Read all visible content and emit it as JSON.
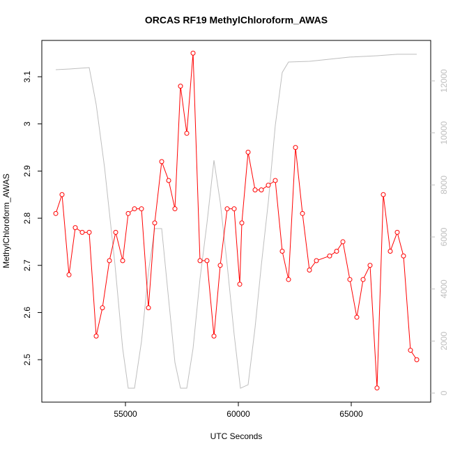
{
  "chart_data": {
    "type": "line",
    "title": "ORCAS RF19 MethylChloroform_AWAS",
    "xlabel": "UTC Seconds",
    "ylabel": "MethylChloroform_AWAS",
    "xlim": [
      51296,
      68519
    ],
    "xticks": [
      55000,
      60000,
      65000
    ],
    "ylim": [
      2.41,
      3.177
    ],
    "yticks": [
      2.5,
      2.6,
      2.7,
      2.8,
      2.9,
      3.0,
      3.1
    ],
    "y2lim": [
      -348,
      13554
    ],
    "y2ticks": [
      0,
      2000,
      4000,
      6000,
      8000,
      10000,
      12000
    ],
    "series": [
      {
        "color": "#ff0000",
        "markers": true,
        "x": [
          51914,
          52191,
          52500,
          52778,
          53086,
          53395,
          53704,
          53981,
          54290,
          54568,
          54877,
          55123,
          55401,
          55710,
          56019,
          56296,
          56605,
          56914,
          57191,
          57438,
          57716,
          57994,
          58302,
          58611,
          58920,
          59198,
          59506,
          59815,
          60062,
          60154,
          60432,
          60741,
          61019,
          61327,
          61636,
          61944,
          62222,
          62531,
          62840,
          63148,
          63457,
          64043,
          64352,
          64630,
          64938,
          65247,
          65525,
          65833,
          66142,
          66420,
          66728,
          67037,
          67315,
          67623,
          67901
        ],
        "values": [
          2.81,
          2.85,
          2.68,
          2.78,
          2.77,
          2.77,
          2.55,
          2.61,
          2.71,
          2.77,
          2.71,
          2.81,
          2.82,
          2.82,
          2.61,
          2.79,
          2.92,
          2.88,
          2.82,
          3.08,
          2.98,
          3.15,
          2.71,
          2.71,
          2.55,
          2.7,
          2.82,
          2.82,
          2.66,
          2.79,
          2.94,
          2.86,
          2.86,
          2.87,
          2.88,
          2.73,
          2.67,
          2.95,
          2.81,
          2.69,
          2.71,
          2.72,
          2.73,
          2.75,
          2.67,
          2.59,
          2.67,
          2.7,
          2.44,
          2.85,
          2.73,
          2.77,
          2.72,
          2.52,
          2.5
        ]
      },
      {
        "color": "#bebebe",
        "axis": "y2",
        "markers": false,
        "x": [
          51914,
          52531,
          53395,
          53704,
          54074,
          54537,
          54877,
          55123,
          55401,
          55710,
          56019,
          56296,
          56605,
          56914,
          57191,
          57438,
          57716,
          57994,
          58302,
          58611,
          58920,
          59198,
          59506,
          59815,
          60093,
          60432,
          60741,
          61019,
          61327,
          61636,
          61944,
          62222,
          63148,
          64938,
          66142,
          67037,
          67901
        ],
        "values": [
          12430,
          12457,
          12510,
          11090,
          8679,
          4929,
          1714,
          187,
          187,
          1982,
          4661,
          6322,
          6322,
          3590,
          1179,
          187,
          187,
          1714,
          4393,
          6536,
          8948,
          7340,
          4929,
          2250,
          187,
          321,
          2518,
          4929,
          7340,
          10287,
          12323,
          12725,
          12752,
          12913,
          12966,
          13020,
          13020
        ]
      }
    ]
  }
}
